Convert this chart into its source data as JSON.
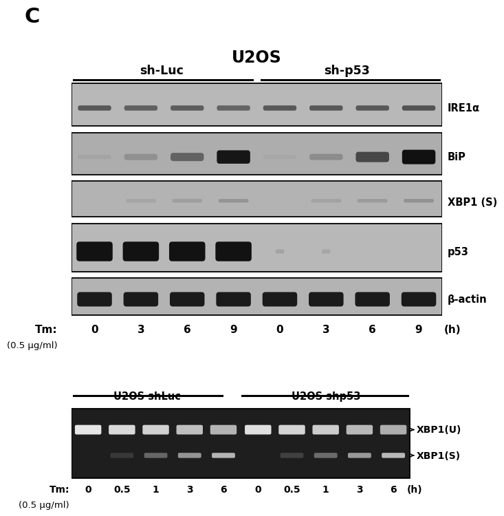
{
  "title": "U2OS",
  "panel_label": "C",
  "group1_label": "sh-Luc",
  "group2_label": "sh-p53",
  "wb_labels": [
    "IRE1α",
    "BiP",
    "XBP1 (S)",
    "p53",
    "β-actin"
  ],
  "tm_labels_wb": [
    "0",
    "3",
    "6",
    "9",
    "0",
    "3",
    "6",
    "9"
  ],
  "tm_unit_wb": "(h)",
  "tm_prefix_wb": "Tm:",
  "tm_note_wb": "(0.5 μg/ml)",
  "gel_group1_label": "U2OS shLuc",
  "gel_group2_label": "U2OS shp53",
  "gel_labels": [
    "XBP1(U)",
    "XBP1(S)"
  ],
  "tm_labels_gel": [
    "0",
    "0.5",
    "1",
    "3",
    "6",
    "0",
    "0.5",
    "1",
    "3",
    "6"
  ],
  "tm_unit_gel": "(h)",
  "tm_prefix_gel": "Tm:",
  "tm_note_gel": "(0.5 μg/ml)",
  "bg_color": "#ffffff"
}
